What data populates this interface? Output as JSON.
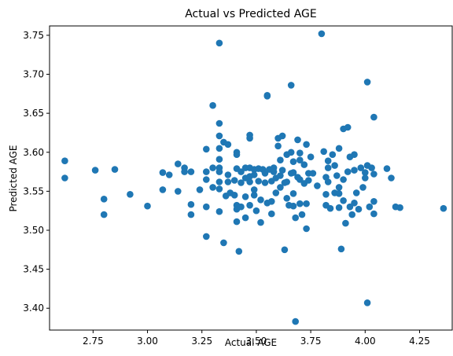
{
  "chart_data": {
    "type": "scatter",
    "title": "Actual vs Predicted AGE",
    "xlabel": "Actual AGE",
    "ylabel": "Predicted AGE",
    "xlim": [
      2.55,
      4.4
    ],
    "ylim": [
      3.372,
      3.762
    ],
    "xticks": [
      "2.75",
      "3.00",
      "3.25",
      "3.50",
      "3.75",
      "4.00",
      "4.25"
    ],
    "yticks": [
      "3.40",
      "3.45",
      "3.50",
      "3.55",
      "3.60",
      "3.65",
      "3.70",
      "3.75"
    ],
    "grid": false,
    "marker_color": "#1f77b4",
    "points": [
      [
        2.62,
        3.589
      ],
      [
        2.62,
        3.567
      ],
      [
        2.76,
        3.577
      ],
      [
        2.8,
        3.54
      ],
      [
        2.8,
        3.52
      ],
      [
        2.85,
        3.578
      ],
      [
        2.92,
        3.546
      ],
      [
        3.0,
        3.531
      ],
      [
        3.07,
        3.574
      ],
      [
        3.07,
        3.552
      ],
      [
        3.1,
        3.571
      ],
      [
        3.14,
        3.585
      ],
      [
        3.14,
        3.55
      ],
      [
        3.17,
        3.58
      ],
      [
        3.17,
        3.575
      ],
      [
        3.2,
        3.575
      ],
      [
        3.2,
        3.533
      ],
      [
        3.2,
        3.52
      ],
      [
        3.24,
        3.552
      ],
      [
        3.27,
        3.604
      ],
      [
        3.27,
        3.575
      ],
      [
        3.27,
        3.565
      ],
      [
        3.27,
        3.53
      ],
      [
        3.27,
        3.492
      ],
      [
        3.3,
        3.66
      ],
      [
        3.3,
        3.58
      ],
      [
        3.3,
        3.555
      ],
      [
        3.33,
        3.74
      ],
      [
        3.33,
        3.637
      ],
      [
        3.33,
        3.621
      ],
      [
        3.33,
        3.605
      ],
      [
        3.33,
        3.591
      ],
      [
        3.33,
        3.58
      ],
      [
        3.33,
        3.575
      ],
      [
        3.33,
        3.562
      ],
      [
        3.33,
        3.553
      ],
      [
        3.33,
        3.524
      ],
      [
        3.35,
        3.613
      ],
      [
        3.36,
        3.544
      ],
      [
        3.35,
        3.484
      ],
      [
        3.37,
        3.61
      ],
      [
        3.37,
        3.571
      ],
      [
        3.37,
        3.562
      ],
      [
        3.38,
        3.548
      ],
      [
        3.4,
        3.564
      ],
      [
        3.4,
        3.545
      ],
      [
        3.41,
        3.6
      ],
      [
        3.41,
        3.597
      ],
      [
        3.41,
        3.579
      ],
      [
        3.41,
        3.532
      ],
      [
        3.41,
        3.527
      ],
      [
        3.41,
        3.511
      ],
      [
        3.42,
        3.473
      ],
      [
        3.43,
        3.575
      ],
      [
        3.43,
        3.561
      ],
      [
        3.43,
        3.53
      ],
      [
        3.45,
        3.58
      ],
      [
        3.45,
        3.567
      ],
      [
        3.45,
        3.543
      ],
      [
        3.45,
        3.516
      ],
      [
        3.47,
        3.622
      ],
      [
        3.47,
        3.618
      ],
      [
        3.47,
        3.58
      ],
      [
        3.47,
        3.569
      ],
      [
        3.47,
        3.562
      ],
      [
        3.47,
        3.532
      ],
      [
        3.49,
        3.578
      ],
      [
        3.49,
        3.571
      ],
      [
        3.49,
        3.552
      ],
      [
        3.49,
        3.545
      ],
      [
        3.5,
        3.525
      ],
      [
        3.51,
        3.563
      ],
      [
        3.51,
        3.579
      ],
      [
        3.52,
        3.539
      ],
      [
        3.52,
        3.51
      ],
      [
        3.53,
        3.578
      ],
      [
        3.54,
        3.573
      ],
      [
        3.54,
        3.561
      ],
      [
        3.55,
        3.673
      ],
      [
        3.55,
        3.672
      ],
      [
        3.55,
        3.535
      ],
      [
        3.56,
        3.578
      ],
      [
        3.57,
        3.563
      ],
      [
        3.57,
        3.537
      ],
      [
        3.57,
        3.521
      ],
      [
        3.58,
        3.58
      ],
      [
        3.58,
        3.575
      ],
      [
        3.59,
        3.567
      ],
      [
        3.59,
        3.548
      ],
      [
        3.6,
        3.618
      ],
      [
        3.6,
        3.608
      ],
      [
        3.61,
        3.59
      ],
      [
        3.61,
        3.57
      ],
      [
        3.61,
        3.555
      ],
      [
        3.62,
        3.621
      ],
      [
        3.62,
        3.577
      ],
      [
        3.63,
        3.561
      ],
      [
        3.63,
        3.475
      ],
      [
        3.64,
        3.597
      ],
      [
        3.64,
        3.562
      ],
      [
        3.64,
        3.541
      ],
      [
        3.65,
        3.532
      ],
      [
        3.66,
        3.686
      ],
      [
        3.66,
        3.6
      ],
      [
        3.66,
        3.573
      ],
      [
        3.67,
        3.588
      ],
      [
        3.67,
        3.574
      ],
      [
        3.67,
        3.547
      ],
      [
        3.67,
        3.531
      ],
      [
        3.68,
        3.516
      ],
      [
        3.68,
        3.383
      ],
      [
        3.69,
        3.616
      ],
      [
        3.69,
        3.568
      ],
      [
        3.7,
        3.599
      ],
      [
        3.7,
        3.59
      ],
      [
        3.7,
        3.565
      ],
      [
        3.7,
        3.534
      ],
      [
        3.71,
        3.52
      ],
      [
        3.72,
        3.584
      ],
      [
        3.72,
        3.56
      ],
      [
        3.73,
        3.61
      ],
      [
        3.73,
        3.534
      ],
      [
        3.73,
        3.502
      ],
      [
        3.74,
        3.573
      ],
      [
        3.74,
        3.564
      ],
      [
        3.75,
        3.594
      ],
      [
        3.76,
        3.573
      ],
      [
        3.78,
        3.557
      ],
      [
        3.8,
        3.752
      ],
      [
        3.81,
        3.601
      ],
      [
        3.82,
        3.568
      ],
      [
        3.82,
        3.546
      ],
      [
        3.82,
        3.532
      ],
      [
        3.83,
        3.589
      ],
      [
        3.83,
        3.58
      ],
      [
        3.83,
        3.562
      ],
      [
        3.84,
        3.528
      ],
      [
        3.85,
        3.597
      ],
      [
        3.86,
        3.583
      ],
      [
        3.86,
        3.548
      ],
      [
        3.87,
        3.57
      ],
      [
        3.88,
        3.605
      ],
      [
        3.88,
        3.555
      ],
      [
        3.88,
        3.547
      ],
      [
        3.88,
        3.529
      ],
      [
        3.89,
        3.476
      ],
      [
        3.9,
        3.63
      ],
      [
        3.9,
        3.565
      ],
      [
        3.9,
        3.538
      ],
      [
        3.91,
        3.509
      ],
      [
        3.92,
        3.632
      ],
      [
        3.92,
        3.575
      ],
      [
        3.93,
        3.594
      ],
      [
        3.93,
        3.53
      ],
      [
        3.94,
        3.52
      ],
      [
        3.95,
        3.597
      ],
      [
        3.95,
        3.577
      ],
      [
        3.95,
        3.535
      ],
      [
        3.96,
        3.548
      ],
      [
        3.97,
        3.527
      ],
      [
        3.98,
        3.58
      ],
      [
        3.99,
        3.555
      ],
      [
        4.0,
        3.574
      ],
      [
        4.0,
        3.567
      ],
      [
        4.01,
        3.69
      ],
      [
        4.01,
        3.583
      ],
      [
        4.01,
        3.407
      ],
      [
        4.02,
        3.53
      ],
      [
        4.03,
        3.58
      ],
      [
        4.04,
        3.645
      ],
      [
        4.04,
        3.572
      ],
      [
        4.04,
        3.537
      ],
      [
        4.04,
        3.521
      ],
      [
        4.1,
        3.579
      ],
      [
        4.12,
        3.567
      ],
      [
        4.14,
        3.53
      ],
      [
        4.16,
        3.529
      ],
      [
        4.36,
        3.528
      ]
    ]
  }
}
